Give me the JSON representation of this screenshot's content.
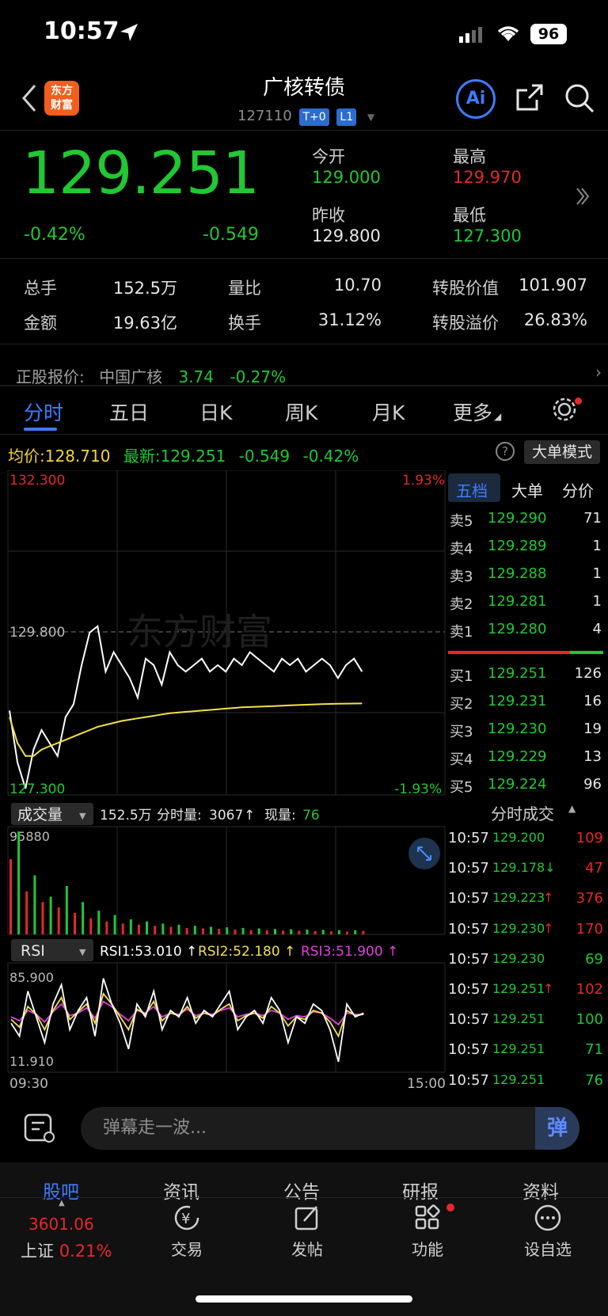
{
  "status_bar": {
    "time": "10:57",
    "battery": "96"
  },
  "header": {
    "logo_line1": "东方",
    "logo_line2": "财富",
    "title": "广核转债",
    "code": "127110",
    "tag1": "T+0",
    "tag2": "L1",
    "ai_label": "Ai"
  },
  "quote": {
    "price": "129.251",
    "pct_change": "-0.42%",
    "abs_change": "-0.549",
    "open_label": "今开",
    "open": "129.000",
    "high_label": "最高",
    "high": "129.970",
    "prev_close_label": "昨收",
    "prev_close": "129.800",
    "low_label": "最低",
    "low": "127.300"
  },
  "stats": {
    "volume_label": "总手",
    "volume": "152.5万",
    "vol_ratio_label": "量比",
    "vol_ratio": "10.70",
    "conv_value_label": "转股价值",
    "conv_value": "101.907",
    "amount_label": "金额",
    "amount": "19.63亿",
    "turnover_label": "换手",
    "turnover": "31.12%",
    "conv_premium_label": "转股溢价",
    "conv_premium": "26.83%"
  },
  "underlying": {
    "label": "正股报价:",
    "name": "中国广核",
    "price": "3.74",
    "change": "-0.27%"
  },
  "tabs": [
    "分时",
    "五日",
    "日K",
    "周K",
    "月K",
    "更多"
  ],
  "chart_info": {
    "avg_label": "均价:",
    "avg": "128.710",
    "latest_label": "最新:",
    "latest": "129.251",
    "change": "-0.549",
    "pct": "-0.42%",
    "mode_button": "大单模式"
  },
  "chart_data": [
    {
      "type": "line",
      "name": "intraday",
      "y_max_label": "132.300",
      "y_mid_label": "129.800",
      "y_min_label": "127.300",
      "pct_max_label": "1.93%",
      "pct_min_label": "-1.93%",
      "ylim": [
        127.3,
        132.3
      ],
      "watermark": "东方财富",
      "series": [
        {
          "name": "price",
          "color": "#ffffff",
          "values": [
            128.6,
            127.8,
            127.4,
            128.0,
            128.3,
            128.1,
            127.9,
            128.5,
            128.7,
            129.3,
            129.8,
            129.9,
            129.2,
            129.5,
            129.3,
            129.1,
            128.8,
            129.4,
            129.3,
            129.0,
            129.5,
            129.3,
            129.2,
            129.3,
            129.4,
            129.2,
            129.3,
            129.2,
            129.4,
            129.3,
            129.5,
            129.4,
            129.3,
            129.2,
            129.4,
            129.3,
            129.4,
            129.2,
            129.3,
            129.4,
            129.3,
            129.1,
            129.3,
            129.4,
            129.2
          ]
        },
        {
          "name": "avg",
          "color": "#f3e04a",
          "values": [
            128.5,
            128.1,
            127.9,
            127.9,
            128.0,
            128.05,
            128.1,
            128.15,
            128.2,
            128.25,
            128.3,
            128.35,
            128.38,
            128.41,
            128.44,
            128.46,
            128.48,
            128.5,
            128.52,
            128.54,
            128.56,
            128.57,
            128.58,
            128.59,
            128.6,
            128.61,
            128.62,
            128.63,
            128.64,
            128.65,
            128.655,
            128.66,
            128.665,
            128.67,
            128.675,
            128.68,
            128.685,
            128.69,
            128.695,
            128.7,
            128.703,
            128.705,
            128.707,
            128.709,
            128.71
          ]
        }
      ]
    },
    {
      "type": "bar",
      "name": "volume",
      "indicator_label": "成交量",
      "total": "152.5万",
      "minute_vol_label": "分时量:",
      "minute_vol": "3067",
      "current_label": "现量:",
      "current": "76",
      "y_max_label": "95880",
      "ylim": [
        0,
        95880
      ],
      "values": [
        70000,
        95880,
        40000,
        55000,
        30000,
        35000,
        25000,
        45000,
        20000,
        30000,
        15000,
        22000,
        12000,
        18000,
        10000,
        14000,
        9000,
        12000,
        8000,
        10000,
        7000,
        9000,
        6000,
        8000,
        5500,
        7000,
        5000,
        6500,
        4500,
        6000,
        4000,
        5500,
        3800,
        5000,
        3500,
        4800,
        3300,
        4500,
        3000,
        4200,
        2800,
        4000,
        2600,
        3800,
        3067
      ],
      "colors_pattern": "alternating red/green"
    },
    {
      "type": "line",
      "name": "rsi",
      "indicator_label": "RSI",
      "y_max_label": "85.900",
      "y_min_label": "11.910",
      "ylim": [
        11.91,
        85.9
      ],
      "x_start_label": "09:30",
      "x_end_label": "15:00",
      "series": [
        {
          "name": "RSI1",
          "label": "RSI1:53.010 ↑",
          "color": "#ffffff",
          "values": [
            45,
            35,
            70,
            50,
            30,
            60,
            75,
            40,
            55,
            65,
            35,
            80,
            60,
            45,
            25,
            60,
            50,
            70,
            40,
            55,
            50,
            65,
            45,
            55,
            50,
            60,
            70,
            40,
            50,
            55,
            45,
            65,
            55,
            30,
            50,
            45,
            60,
            55,
            40,
            15,
            60,
            50,
            53
          ]
        },
        {
          "name": "RSI2",
          "label": "RSI2:52.180 ↑",
          "color": "#f3e04a",
          "values": [
            48,
            42,
            58,
            52,
            40,
            55,
            65,
            48,
            54,
            60,
            45,
            68,
            60,
            50,
            40,
            56,
            52,
            62,
            47,
            53,
            51,
            58,
            49,
            53,
            51,
            56,
            60,
            47,
            51,
            53,
            49,
            58,
            53,
            43,
            50,
            48,
            55,
            53,
            46,
            35,
            55,
            51,
            52
          ]
        },
        {
          "name": "RSI3",
          "label": "RSI3:51.900 ↑",
          "color": "#e040e0",
          "values": [
            50,
            47,
            55,
            52,
            46,
            54,
            60,
            51,
            53,
            57,
            49,
            62,
            58,
            52,
            47,
            55,
            53,
            58,
            50,
            53,
            52,
            56,
            51,
            53,
            52,
            55,
            57,
            50,
            52,
            53,
            51,
            55,
            53,
            48,
            51,
            50,
            54,
            53,
            49,
            44,
            53,
            52,
            51.9
          ]
        }
      ]
    }
  ],
  "order_book": {
    "tabs": [
      "五档",
      "大单",
      "分价"
    ],
    "asks": [
      {
        "label": "卖5",
        "price": "129.290",
        "qty": "71"
      },
      {
        "label": "卖4",
        "price": "129.289",
        "qty": "1"
      },
      {
        "label": "卖3",
        "price": "129.288",
        "qty": "1"
      },
      {
        "label": "卖2",
        "price": "129.281",
        "qty": "1"
      },
      {
        "label": "卖1",
        "price": "129.280",
        "qty": "4"
      }
    ],
    "bids": [
      {
        "label": "买1",
        "price": "129.251",
        "qty": "126"
      },
      {
        "label": "买2",
        "price": "129.231",
        "qty": "16"
      },
      {
        "label": "买3",
        "price": "129.230",
        "qty": "19"
      },
      {
        "label": "买4",
        "price": "129.229",
        "qty": "13"
      },
      {
        "label": "买5",
        "price": "129.224",
        "qty": "96"
      }
    ],
    "trades_title": "分时成交",
    "trades": [
      {
        "time": "10:57",
        "price": "129.200",
        "arrow": "",
        "qty": "109",
        "qty_color": "red"
      },
      {
        "time": "10:57",
        "price": "129.178↓",
        "arrow": "",
        "qty": "47",
        "qty_color": "red"
      },
      {
        "time": "10:57",
        "price": "129.223",
        "arrow": "↑",
        "qty": "376",
        "qty_color": "red"
      },
      {
        "time": "10:57",
        "price": "129.230",
        "arrow": "↑",
        "qty": "170",
        "qty_color": "red"
      },
      {
        "time": "10:57",
        "price": "129.230",
        "arrow": "",
        "qty": "69",
        "qty_color": "green"
      },
      {
        "time": "10:57",
        "price": "129.251",
        "arrow": "↑",
        "qty": "102",
        "qty_color": "red"
      },
      {
        "time": "10:57",
        "price": "129.251",
        "arrow": "",
        "qty": "100",
        "qty_color": "green"
      },
      {
        "time": "10:57",
        "price": "129.251",
        "arrow": "",
        "qty": "71",
        "qty_color": "green"
      },
      {
        "time": "10:57",
        "price": "129.251",
        "arrow": "",
        "qty": "76",
        "qty_color": "green"
      }
    ]
  },
  "comment": {
    "placeholder": "弹幕走一波...",
    "danmu_label": "弹"
  },
  "sub_tabs": [
    "股吧",
    "资讯",
    "公告",
    "研报",
    "资料"
  ],
  "bottom_nav": {
    "index_value": "3601.06",
    "index_name": "上证",
    "index_change": "0.21%",
    "items": [
      "交易",
      "发帖",
      "功能",
      "设自选"
    ]
  }
}
